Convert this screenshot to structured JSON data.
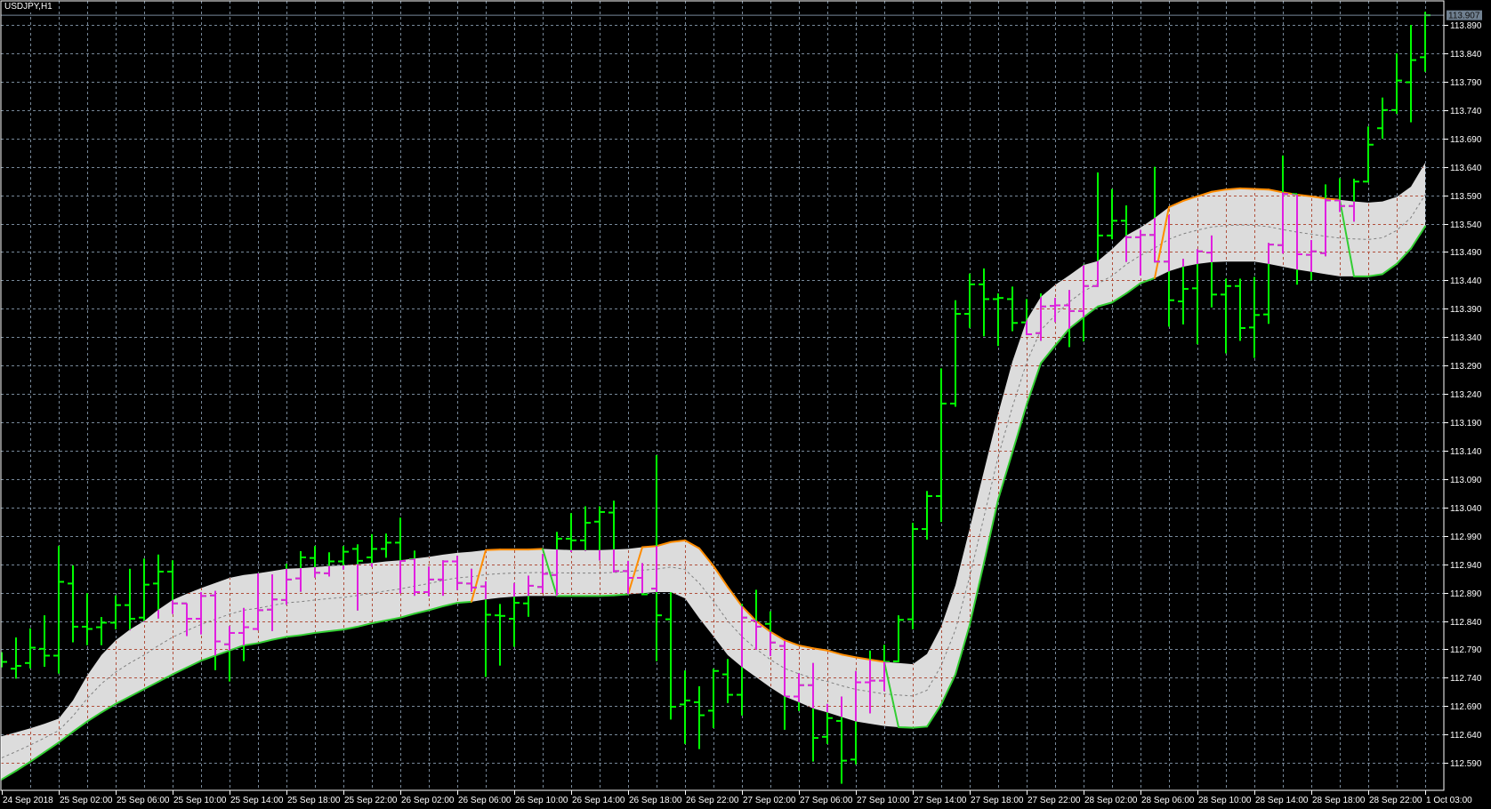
{
  "chart_data": {
    "type": "ohlc",
    "title": "USDJPY,H1",
    "symbol": "USDJPY",
    "timeframe": "H1",
    "current_price": 113.907,
    "ylim": [
      112.56,
      113.93
    ],
    "grid": true,
    "colors": {
      "background": "#000000",
      "bar": "#00ff00",
      "bar_inside_band": "#e020e0",
      "band_fill": "#dcdcdc",
      "grid": "#778899",
      "grid_in_band": "#b0503c",
      "middle_line": "#808080",
      "trend_up": "#32cd32",
      "trend_down": "#ff8c00",
      "price_line": "#778899",
      "axis_text": "#ffffff"
    },
    "x_tick_labels": [
      "24 Sep 2018",
      "25 Sep 02:00",
      "25 Sep 06:00",
      "25 Sep 10:00",
      "25 Sep 14:00",
      "25 Sep 18:00",
      "25 Sep 22:00",
      "26 Sep 02:00",
      "26 Sep 06:00",
      "26 Sep 10:00",
      "26 Sep 14:00",
      "26 Sep 18:00",
      "26 Sep 22:00",
      "27 Sep 02:00",
      "27 Sep 06:00",
      "27 Sep 10:00",
      "27 Sep 14:00",
      "27 Sep 18:00",
      "27 Sep 22:00",
      "28 Sep 02:00",
      "28 Sep 06:00",
      "28 Sep 10:00",
      "28 Sep 14:00",
      "28 Sep 18:00",
      "28 Sep 22:00",
      "1 Oct 03:00"
    ],
    "y_tick_labels": [
      "113.890",
      "113.840",
      "113.790",
      "113.740",
      "113.690",
      "113.640",
      "113.590",
      "113.540",
      "113.490",
      "113.440",
      "113.390",
      "113.340",
      "113.290",
      "113.240",
      "113.190",
      "113.140",
      "113.090",
      "113.040",
      "112.990",
      "112.940",
      "112.890",
      "112.840",
      "112.790",
      "112.740",
      "112.690",
      "112.640",
      "112.590"
    ],
    "bars": [
      [
        112.775,
        112.785,
        112.76,
        112.768
      ],
      [
        112.756,
        112.811,
        112.74,
        112.761
      ],
      [
        112.766,
        112.827,
        112.758,
        112.793
      ],
      [
        112.791,
        112.85,
        112.761,
        112.779
      ],
      [
        112.779,
        112.972,
        112.749,
        112.909
      ],
      [
        112.906,
        112.938,
        112.804,
        112.83
      ],
      [
        112.83,
        112.889,
        112.799,
        112.826
      ],
      [
        112.829,
        112.847,
        112.799,
        112.837
      ],
      [
        112.837,
        112.885,
        112.827,
        112.868
      ],
      [
        112.868,
        112.932,
        112.825,
        112.844
      ],
      [
        112.846,
        112.95,
        112.84,
        112.904
      ],
      [
        112.906,
        112.957,
        112.846,
        112.927
      ],
      [
        112.927,
        112.947,
        112.854,
        112.871
      ],
      [
        112.871,
        112.871,
        112.815,
        112.844
      ],
      [
        112.844,
        112.891,
        112.818,
        112.884
      ],
      [
        112.885,
        112.893,
        112.755,
        112.804
      ],
      [
        112.799,
        112.831,
        112.735,
        112.819
      ],
      [
        112.819,
        112.863,
        112.771,
        112.829
      ],
      [
        112.826,
        112.924,
        112.825,
        112.859
      ],
      [
        112.86,
        112.922,
        112.824,
        112.878
      ],
      [
        112.877,
        112.941,
        112.87,
        112.913
      ],
      [
        112.915,
        112.963,
        112.893,
        112.952
      ],
      [
        112.951,
        112.972,
        112.918,
        112.925
      ],
      [
        112.924,
        112.961,
        112.92,
        112.945
      ],
      [
        112.945,
        112.972,
        112.932,
        112.962
      ],
      [
        112.967,
        112.975,
        112.86,
        112.946
      ],
      [
        112.952,
        112.993,
        112.937,
        112.967
      ],
      [
        112.967,
        112.994,
        112.953,
        112.978
      ],
      [
        112.978,
        113.022,
        112.89,
        112.946
      ],
      [
        112.949,
        112.964,
        112.886,
        112.891
      ],
      [
        112.891,
        112.936,
        112.885,
        112.913
      ],
      [
        112.913,
        112.947,
        112.886,
        112.945
      ],
      [
        112.945,
        112.955,
        112.896,
        112.907
      ],
      [
        112.906,
        112.932,
        112.893,
        112.899
      ],
      [
        112.901,
        112.91,
        112.743,
        112.851
      ],
      [
        112.85,
        112.87,
        112.763,
        112.849
      ],
      [
        112.844,
        112.907,
        112.796,
        112.872
      ],
      [
        112.871,
        112.92,
        112.849,
        112.902
      ],
      [
        112.9,
        112.958,
        112.891,
        112.923
      ],
      [
        112.921,
        112.997,
        112.885,
        112.985
      ],
      [
        112.985,
        113.03,
        112.963,
        112.982
      ],
      [
        112.982,
        113.042,
        112.965,
        113.013
      ],
      [
        113.015,
        113.042,
        112.948,
        113.032
      ],
      [
        113.031,
        113.052,
        112.927,
        112.928
      ],
      [
        112.928,
        112.946,
        112.887,
        112.916
      ],
      [
        112.916,
        112.942,
        112.887,
        112.887
      ],
      [
        112.897,
        113.132,
        112.771,
        112.85
      ],
      [
        112.843,
        112.891,
        112.668,
        112.689
      ],
      [
        112.693,
        112.753,
        112.625,
        112.7
      ],
      [
        112.697,
        112.725,
        112.616,
        112.674
      ],
      [
        112.682,
        112.756,
        112.653,
        112.752
      ],
      [
        112.746,
        112.773,
        112.697,
        112.71
      ],
      [
        112.71,
        112.87,
        112.675,
        112.846
      ],
      [
        112.841,
        112.895,
        112.791,
        112.83
      ],
      [
        112.835,
        112.857,
        112.78,
        112.802
      ],
      [
        112.796,
        112.805,
        112.65,
        112.707
      ],
      [
        112.707,
        112.748,
        112.683,
        112.727
      ],
      [
        112.727,
        112.766,
        112.594,
        112.634
      ],
      [
        112.636,
        112.694,
        112.625,
        112.669
      ],
      [
        112.664,
        112.707,
        112.555,
        112.594
      ],
      [
        112.596,
        112.752,
        112.589,
        112.732
      ],
      [
        112.732,
        112.788,
        112.679,
        112.735
      ],
      [
        112.735,
        112.798,
        112.718,
        112.768
      ],
      [
        112.769,
        112.85,
        112.769,
        112.842
      ],
      [
        112.843,
        113.013,
        112.827,
        113.002
      ],
      [
        113.002,
        113.069,
        112.985,
        113.06
      ],
      [
        113.06,
        113.285,
        113.016,
        113.223
      ],
      [
        113.223,
        113.405,
        113.219,
        113.381
      ],
      [
        113.381,
        113.452,
        113.358,
        113.433
      ],
      [
        113.433,
        113.461,
        113.343,
        113.407
      ],
      [
        113.407,
        113.417,
        113.326,
        113.409
      ],
      [
        113.407,
        113.429,
        113.352,
        113.365
      ],
      [
        113.366,
        113.407,
        113.345,
        113.345
      ],
      [
        113.347,
        113.417,
        113.335,
        113.394
      ],
      [
        113.395,
        113.409,
        113.368,
        113.396
      ],
      [
        113.396,
        113.423,
        113.324,
        113.386
      ],
      [
        113.386,
        113.468,
        113.334,
        113.43
      ],
      [
        113.43,
        113.63,
        113.43,
        113.519
      ],
      [
        113.519,
        113.601,
        113.514,
        113.545
      ],
      [
        113.545,
        113.572,
        113.474,
        113.516
      ],
      [
        113.516,
        113.529,
        113.45,
        113.52
      ],
      [
        113.52,
        113.64,
        113.473,
        113.473
      ],
      [
        113.473,
        113.555,
        113.36,
        113.405
      ],
      [
        113.403,
        113.478,
        113.364,
        113.425
      ],
      [
        113.426,
        113.495,
        113.329,
        113.491
      ],
      [
        113.489,
        113.519,
        113.394,
        113.415
      ],
      [
        113.415,
        113.443,
        113.313,
        113.43
      ],
      [
        113.43,
        113.443,
        113.335,
        113.356
      ],
      [
        113.357,
        113.446,
        113.305,
        113.379
      ],
      [
        113.38,
        113.506,
        113.365,
        113.503
      ],
      [
        113.502,
        113.66,
        113.489,
        113.592
      ],
      [
        113.592,
        113.592,
        113.434,
        113.486
      ],
      [
        113.485,
        113.511,
        113.442,
        113.491
      ],
      [
        113.488,
        113.609,
        113.484,
        113.581
      ],
      [
        113.581,
        113.62,
        113.562,
        113.571
      ],
      [
        113.571,
        113.619,
        113.545,
        113.614
      ],
      [
        113.614,
        113.711,
        113.614,
        113.679
      ],
      [
        113.708,
        113.762,
        113.691,
        113.74
      ],
      [
        113.74,
        113.84,
        113.735,
        113.792
      ],
      [
        113.789,
        113.89,
        113.72,
        113.828
      ],
      [
        113.833,
        113.913,
        113.809,
        113.907
      ]
    ],
    "band_upper": [
      112.637,
      112.644,
      112.651,
      112.659,
      112.668,
      112.7,
      112.744,
      112.78,
      112.806,
      112.825,
      112.84,
      112.86,
      112.877,
      112.888,
      112.898,
      112.907,
      112.916,
      112.921,
      112.924,
      112.928,
      112.932,
      112.933,
      112.935,
      112.937,
      112.938,
      112.94,
      112.942,
      112.945,
      112.947,
      112.95,
      112.953,
      112.957,
      112.96,
      112.962,
      112.965,
      112.966,
      112.966,
      112.966,
      112.967,
      112.966,
      112.965,
      112.965,
      112.965,
      112.966,
      112.967,
      112.97,
      112.972,
      112.979,
      112.982,
      112.968,
      112.937,
      112.9,
      112.866,
      112.84,
      112.821,
      112.806,
      112.797,
      112.792,
      112.788,
      112.781,
      112.776,
      112.772,
      112.768,
      112.766,
      112.764,
      112.782,
      112.83,
      112.903,
      113.003,
      113.104,
      113.205,
      113.297,
      113.37,
      113.411,
      113.432,
      113.449,
      113.467,
      113.474,
      113.495,
      113.519,
      113.533,
      113.55,
      113.569,
      113.58,
      113.588,
      113.596,
      113.6,
      113.602,
      113.601,
      113.6,
      113.595,
      113.591,
      113.588,
      113.584,
      113.582,
      113.579,
      113.577,
      113.579,
      113.587,
      113.605,
      113.647
    ],
    "band_lower": [
      112.561,
      112.576,
      112.592,
      112.609,
      112.626,
      112.645,
      112.663,
      112.679,
      112.694,
      112.707,
      112.72,
      112.733,
      112.746,
      112.758,
      112.77,
      112.779,
      112.788,
      112.797,
      112.801,
      112.807,
      112.812,
      112.815,
      112.819,
      112.822,
      112.825,
      112.83,
      112.836,
      112.841,
      112.846,
      112.853,
      112.859,
      112.866,
      112.872,
      112.874,
      112.878,
      112.881,
      112.883,
      112.884,
      112.884,
      112.884,
      112.884,
      112.884,
      112.884,
      112.885,
      112.887,
      112.889,
      112.891,
      112.891,
      112.88,
      112.845,
      112.813,
      112.78,
      112.759,
      112.741,
      112.723,
      112.707,
      112.697,
      112.686,
      112.679,
      112.671,
      112.663,
      112.659,
      112.655,
      112.653,
      112.652,
      112.654,
      112.693,
      112.746,
      112.833,
      112.942,
      113.054,
      113.137,
      113.221,
      113.294,
      113.325,
      113.355,
      113.375,
      113.394,
      113.401,
      113.417,
      113.435,
      113.444,
      113.456,
      113.464,
      113.469,
      113.472,
      113.473,
      113.473,
      113.473,
      113.469,
      113.464,
      113.459,
      113.455,
      113.451,
      113.447,
      113.447,
      113.447,
      113.451,
      113.469,
      113.496,
      113.535
    ],
    "trend_segments": [
      {
        "from": 0,
        "to": 33,
        "dir": "up"
      },
      {
        "from": 34,
        "to": 38,
        "dir": "down"
      },
      {
        "from": 39,
        "to": 44,
        "dir": "up"
      },
      {
        "from": 45,
        "to": 62,
        "dir": "down"
      },
      {
        "from": 63,
        "to": 81,
        "dir": "up"
      },
      {
        "from": 82,
        "to": 94,
        "dir": "down"
      },
      {
        "from": 95,
        "to": 100,
        "dir": "up"
      }
    ],
    "current_price_label": "113.907"
  }
}
